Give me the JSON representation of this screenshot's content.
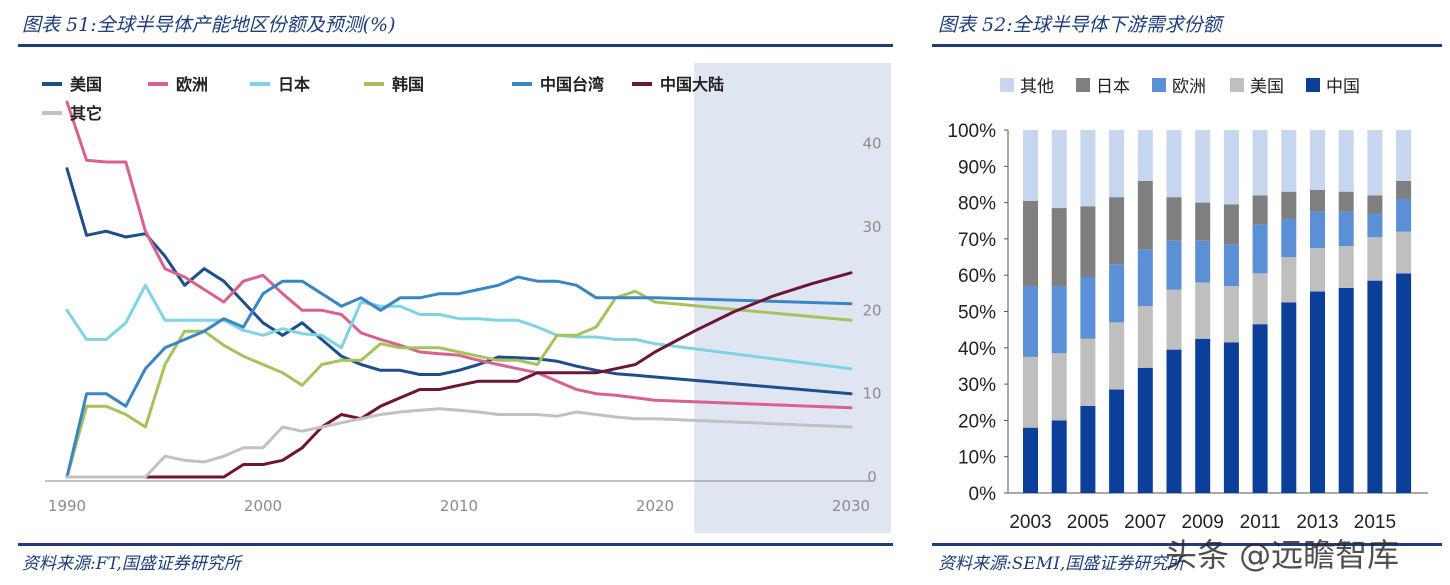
{
  "left_figure": {
    "title": "图表 51:全球半导体产能地区份额及预测(%)",
    "source": "资料来源:FT,国盛证券研究所"
  },
  "right_figure": {
    "title": "图表 52:全球半导体下游需求份额",
    "source": "资料来源:SEMI,国盛证券研究所"
  },
  "watermark": "头条 @远瞻智库",
  "chart_data": [
    {
      "type": "line",
      "title": "",
      "y_axis_position": "right",
      "ylim": [
        0,
        45
      ],
      "yticks": [
        0,
        10,
        20,
        30,
        40
      ],
      "xlim": [
        1990,
        2030
      ],
      "xticks": [
        1990,
        2000,
        2010,
        2020,
        2030
      ],
      "forecast_shaded_from": 2022,
      "grid": false,
      "legend_position": "top-left",
      "series": [
        {
          "name": "美国",
          "color": "#1f4e8c",
          "x": [
            1990,
            1991,
            1992,
            1993,
            1994,
            1995,
            1996,
            1997,
            1998,
            1999,
            2000,
            2001,
            2002,
            2003,
            2004,
            2005,
            2006,
            2007,
            2008,
            2009,
            2010,
            2011,
            2012,
            2013,
            2014,
            2015,
            2016,
            2017,
            2018,
            2019,
            2020,
            2030
          ],
          "y": [
            37,
            29,
            29.5,
            28.8,
            29.2,
            26.5,
            23,
            25,
            23.5,
            21,
            18.5,
            17,
            18.5,
            16.5,
            14.5,
            13.5,
            12.8,
            12.8,
            12.3,
            12.3,
            12.8,
            13.5,
            14.4,
            14.3,
            14.2,
            13.9,
            13.3,
            12.8,
            12.4,
            12.2,
            12,
            10
          ]
        },
        {
          "name": "欧洲",
          "color": "#d9618e",
          "x": [
            1990,
            1991,
            1992,
            1993,
            1994,
            1995,
            1996,
            1997,
            1998,
            1999,
            2000,
            2001,
            2002,
            2003,
            2004,
            2005,
            2006,
            2007,
            2008,
            2009,
            2010,
            2011,
            2012,
            2013,
            2014,
            2015,
            2016,
            2017,
            2018,
            2019,
            2020,
            2030
          ],
          "y": [
            45,
            38,
            37.8,
            37.8,
            29.5,
            25,
            24,
            22.5,
            21,
            23.5,
            24.2,
            22,
            20,
            20,
            19.5,
            17.3,
            16.5,
            15.8,
            15,
            14.8,
            14.6,
            14,
            13.5,
            13,
            12.5,
            11.5,
            10.5,
            10,
            9.8,
            9.5,
            9.2,
            8.3
          ]
        },
        {
          "name": "日本",
          "color": "#7fd3e3",
          "x": [
            1990,
            1991,
            1992,
            1993,
            1994,
            1995,
            1996,
            1997,
            1998,
            1999,
            2000,
            2001,
            2002,
            2003,
            2004,
            2005,
            2006,
            2007,
            2008,
            2009,
            2010,
            2011,
            2012,
            2013,
            2014,
            2015,
            2016,
            2017,
            2018,
            2019,
            2020,
            2030
          ],
          "y": [
            20,
            16.5,
            16.5,
            18.5,
            23,
            18.8,
            18.8,
            18.8,
            18.8,
            17.6,
            17,
            17.8,
            17.2,
            17,
            15.5,
            21,
            20.5,
            20.5,
            19.5,
            19.5,
            19,
            19,
            18.8,
            18.8,
            18,
            17,
            16.8,
            16.8,
            16.5,
            16.5,
            16,
            13
          ]
        },
        {
          "name": "韩国",
          "color": "#a6c25c",
          "x": [
            1990,
            1991,
            1992,
            1993,
            1994,
            1995,
            1996,
            1997,
            1998,
            1999,
            2000,
            2001,
            2002,
            2003,
            2004,
            2005,
            2006,
            2007,
            2008,
            2009,
            2010,
            2011,
            2012,
            2013,
            2014,
            2015,
            2016,
            2017,
            2018,
            2019,
            2020,
            2030
          ],
          "y": [
            0,
            8.5,
            8.5,
            7.5,
            6,
            13.5,
            17.5,
            17.5,
            15.8,
            14.5,
            13.5,
            12.5,
            11,
            13.5,
            14,
            14,
            16,
            15.5,
            15.5,
            15.5,
            15,
            14.5,
            14,
            14,
            13.5,
            17,
            17,
            18,
            21.5,
            22.3,
            21,
            18.8
          ]
        },
        {
          "name": "中国台湾",
          "color": "#3a86c4",
          "x": [
            1990,
            1991,
            1992,
            1993,
            1994,
            1995,
            1996,
            1997,
            1998,
            1999,
            2000,
            2001,
            2002,
            2003,
            2004,
            2005,
            2006,
            2007,
            2008,
            2009,
            2010,
            2011,
            2012,
            2013,
            2014,
            2015,
            2016,
            2017,
            2018,
            2019,
            2020,
            2030
          ],
          "y": [
            0,
            10,
            10,
            8.5,
            13,
            15.5,
            16.5,
            17.5,
            19,
            18,
            22,
            23.5,
            23.5,
            22,
            20.5,
            21.5,
            20,
            21.5,
            21.5,
            22,
            22,
            22.5,
            23,
            24,
            23.5,
            23.5,
            23,
            21.5,
            21.5,
            21.5,
            21.5,
            20.8
          ]
        },
        {
          "name": "中国大陆",
          "color": "#6e1535",
          "x": [
            1990,
            1991,
            1992,
            1993,
            1994,
            1995,
            1996,
            1997,
            1998,
            1999,
            2000,
            2001,
            2002,
            2003,
            2004,
            2005,
            2006,
            2007,
            2008,
            2009,
            2010,
            2011,
            2012,
            2013,
            2014,
            2015,
            2016,
            2017,
            2018,
            2019,
            2020,
            2022,
            2024,
            2026,
            2028,
            2030
          ],
          "y": [
            0,
            0,
            0,
            0,
            0,
            0,
            0,
            0,
            0,
            1.5,
            1.5,
            2,
            3.5,
            6,
            7.5,
            7,
            8.5,
            9.5,
            10.5,
            10.5,
            11,
            11.5,
            11.5,
            11.5,
            12.5,
            12.5,
            12.5,
            12.5,
            13,
            13.5,
            15,
            17.5,
            19.8,
            21.7,
            23.2,
            24.5
          ]
        },
        {
          "name": "其它",
          "color": "#c4c0c0",
          "x": [
            1990,
            1991,
            1992,
            1993,
            1994,
            1995,
            1996,
            1997,
            1998,
            1999,
            2000,
            2001,
            2002,
            2003,
            2004,
            2005,
            2006,
            2007,
            2008,
            2009,
            2010,
            2011,
            2012,
            2013,
            2014,
            2015,
            2016,
            2017,
            2018,
            2019,
            2020,
            2030
          ],
          "y": [
            0,
            0,
            0,
            0,
            0,
            2.5,
            2,
            1.8,
            2.5,
            3.5,
            3.5,
            6,
            5.5,
            6,
            6.5,
            7,
            7.5,
            7.8,
            8,
            8.2,
            8,
            7.8,
            7.5,
            7.5,
            7.5,
            7.3,
            7.8,
            7.5,
            7.2,
            7,
            7,
            6
          ]
        }
      ]
    },
    {
      "type": "bar",
      "stacked": true,
      "title": "",
      "categories": [
        "2003",
        "2004",
        "2005",
        "2006",
        "2007",
        "2008",
        "2009",
        "2010",
        "2011",
        "2012",
        "2013",
        "2014",
        "2015",
        "2016"
      ],
      "x_tick_labels": [
        "2003",
        "2005",
        "2007",
        "2009",
        "2011",
        "2013",
        "2015"
      ],
      "ylim": [
        0,
        100
      ],
      "yticks": [
        "0%",
        "10%",
        "20%",
        "30%",
        "40%",
        "50%",
        "60%",
        "70%",
        "80%",
        "90%",
        "100%"
      ],
      "legend_position": "top",
      "series": [
        {
          "name": "中国",
          "color": "#0b3f9a",
          "values": [
            18,
            20,
            24,
            28.5,
            34.5,
            39.5,
            42.5,
            41.5,
            46.5,
            52.5,
            55.5,
            56.5,
            58.5,
            60.5
          ]
        },
        {
          "name": "美国",
          "color": "#bfbfbf",
          "values": [
            19.5,
            18.5,
            18.5,
            18.5,
            17,
            16.5,
            15.5,
            15.5,
            14,
            12.5,
            12,
            11.5,
            12,
            11.5
          ]
        },
        {
          "name": "欧洲",
          "color": "#5b8fd6",
          "values": [
            19.5,
            18.5,
            17,
            16,
            15.5,
            13.5,
            11.5,
            11.5,
            13.5,
            10.5,
            10,
            9.5,
            6.5,
            9
          ]
        },
        {
          "name": "日本",
          "color": "#7f7f7f",
          "values": [
            23.5,
            21.5,
            19.5,
            18.5,
            19,
            12,
            10.5,
            11,
            8,
            7.5,
            6,
            5.5,
            5,
            5
          ]
        },
        {
          "name": "其他",
          "color": "#c5d6ee",
          "values": [
            19.5,
            21.5,
            21,
            18.5,
            14,
            18.5,
            20,
            20.5,
            18,
            17,
            16.5,
            17,
            18,
            14
          ]
        }
      ]
    }
  ]
}
